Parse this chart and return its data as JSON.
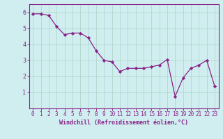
{
  "x": [
    0,
    1,
    2,
    3,
    4,
    5,
    6,
    7,
    8,
    9,
    10,
    11,
    12,
    13,
    14,
    15,
    16,
    17,
    18,
    19,
    20,
    21,
    22,
    23
  ],
  "y": [
    5.9,
    5.9,
    5.8,
    5.1,
    4.6,
    4.7,
    4.7,
    4.4,
    3.6,
    3.0,
    2.9,
    2.3,
    2.5,
    2.5,
    2.5,
    2.6,
    2.7,
    3.05,
    0.75,
    1.9,
    2.5,
    2.7,
    3.0,
    1.4
  ],
  "line_color": "#882288",
  "marker_color": "#882288",
  "bg_color": "#d0eef0",
  "grid_color": "#b0d8cc",
  "axis_color": "#882288",
  "tick_color": "#882288",
  "xlabel": "Windchill (Refroidissement éolien,°C)",
  "xlim": [
    -0.5,
    23.5
  ],
  "ylim": [
    0,
    6.5
  ],
  "yticks": [
    1,
    2,
    3,
    4,
    5,
    6
  ],
  "xticks": [
    0,
    1,
    2,
    3,
    4,
    5,
    6,
    7,
    8,
    9,
    10,
    11,
    12,
    13,
    14,
    15,
    16,
    17,
    18,
    19,
    20,
    21,
    22,
    23
  ]
}
